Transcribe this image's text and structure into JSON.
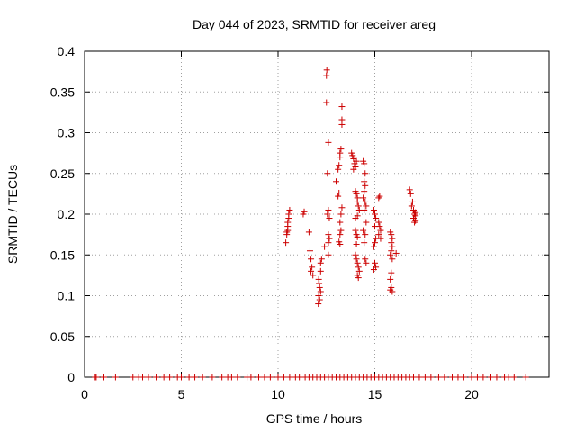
{
  "chart_data": {
    "type": "scatter",
    "title": "Day 044 of 2023, SRMTID for receiver areg",
    "xlabel": "GPS time / hours",
    "ylabel": "SRMTID / TECUs",
    "xlim": [
      0,
      24
    ],
    "ylim": [
      0,
      0.4
    ],
    "grid": true,
    "marker": "+",
    "color": "#cc0000",
    "xticks": [
      0,
      5,
      10,
      15,
      20
    ],
    "xtick_labels": [
      "0",
      "5",
      "10",
      "15",
      "20"
    ],
    "yticks": [
      0,
      0.05,
      0.1,
      0.15,
      0.2,
      0.25,
      0.3,
      0.35,
      0.4
    ],
    "ytick_labels": [
      "0",
      "0.05",
      "0.1",
      "0.15",
      "0.2",
      "0.25",
      "0.3",
      "0.35",
      "0.4"
    ],
    "series": [
      {
        "name": "SRMTID",
        "points": [
          [
            0.55,
            0
          ],
          [
            0.6,
            0
          ],
          [
            1.0,
            0
          ],
          [
            1.6,
            0
          ],
          [
            2.5,
            0
          ],
          [
            2.8,
            0
          ],
          [
            3.0,
            0
          ],
          [
            3.3,
            0
          ],
          [
            3.7,
            0
          ],
          [
            4.1,
            0
          ],
          [
            4.4,
            0
          ],
          [
            4.8,
            0
          ],
          [
            5.0,
            0
          ],
          [
            5.4,
            0
          ],
          [
            5.7,
            0
          ],
          [
            6.1,
            0
          ],
          [
            6.6,
            0
          ],
          [
            7.1,
            0
          ],
          [
            7.4,
            0
          ],
          [
            7.6,
            0
          ],
          [
            7.9,
            0
          ],
          [
            8.4,
            0
          ],
          [
            8.6,
            0
          ],
          [
            9.0,
            0
          ],
          [
            9.3,
            0
          ],
          [
            9.6,
            0
          ],
          [
            10.0,
            0
          ],
          [
            10.3,
            0
          ],
          [
            10.6,
            0
          ],
          [
            10.9,
            0
          ],
          [
            11.1,
            0
          ],
          [
            11.4,
            0
          ],
          [
            11.6,
            0
          ],
          [
            11.8,
            0
          ],
          [
            12.0,
            0
          ],
          [
            12.2,
            0
          ],
          [
            12.4,
            0
          ],
          [
            12.6,
            0
          ],
          [
            12.8,
            0
          ],
          [
            13.0,
            0
          ],
          [
            13.2,
            0
          ],
          [
            13.4,
            0
          ],
          [
            13.6,
            0
          ],
          [
            13.8,
            0
          ],
          [
            14.0,
            0
          ],
          [
            14.2,
            0
          ],
          [
            14.4,
            0
          ],
          [
            14.6,
            0
          ],
          [
            14.8,
            0
          ],
          [
            15.0,
            0
          ],
          [
            15.2,
            0
          ],
          [
            15.4,
            0
          ],
          [
            15.6,
            0
          ],
          [
            15.8,
            0
          ],
          [
            16.0,
            0
          ],
          [
            16.2,
            0
          ],
          [
            16.4,
            0
          ],
          [
            16.6,
            0
          ],
          [
            16.8,
            0
          ],
          [
            17.0,
            0
          ],
          [
            17.3,
            0
          ],
          [
            17.6,
            0
          ],
          [
            17.9,
            0
          ],
          [
            18.3,
            0
          ],
          [
            18.6,
            0
          ],
          [
            19.0,
            0
          ],
          [
            19.3,
            0
          ],
          [
            19.6,
            0
          ],
          [
            20.0,
            0
          ],
          [
            20.3,
            0
          ],
          [
            20.6,
            0
          ],
          [
            21.0,
            0
          ],
          [
            21.3,
            0
          ],
          [
            21.7,
            0
          ],
          [
            21.9,
            0
          ],
          [
            22.2,
            0
          ],
          [
            22.8,
            0
          ],
          [
            10.4,
            0.165
          ],
          [
            10.45,
            0.175
          ],
          [
            10.5,
            0.18
          ],
          [
            10.5,
            0.19
          ],
          [
            10.55,
            0.195
          ],
          [
            10.55,
            0.2
          ],
          [
            10.6,
            0.205
          ],
          [
            10.45,
            0.178
          ],
          [
            10.5,
            0.185
          ],
          [
            11.3,
            0.2
          ],
          [
            11.35,
            0.203
          ],
          [
            11.6,
            0.178
          ],
          [
            11.65,
            0.155
          ],
          [
            11.7,
            0.145
          ],
          [
            11.75,
            0.135
          ],
          [
            11.8,
            0.125
          ],
          [
            11.7,
            0.13
          ],
          [
            12.1,
            0.12
          ],
          [
            12.12,
            0.115
          ],
          [
            12.15,
            0.11
          ],
          [
            12.2,
            0.105
          ],
          [
            12.1,
            0.1
          ],
          [
            12.15,
            0.095
          ],
          [
            12.08,
            0.09
          ],
          [
            12.2,
            0.14
          ],
          [
            12.25,
            0.145
          ],
          [
            12.2,
            0.13
          ],
          [
            12.4,
            0.16
          ],
          [
            12.6,
            0.165
          ],
          [
            12.65,
            0.17
          ],
          [
            12.6,
            0.175
          ],
          [
            12.55,
            0.2
          ],
          [
            12.6,
            0.205
          ],
          [
            12.65,
            0.195
          ],
          [
            12.6,
            0.15
          ],
          [
            12.55,
            0.25
          ],
          [
            12.6,
            0.288
          ],
          [
            12.5,
            0.337
          ],
          [
            12.5,
            0.37
          ],
          [
            12.52,
            0.377
          ],
          [
            13.0,
            0.24
          ],
          [
            13.1,
            0.255
          ],
          [
            13.15,
            0.26
          ],
          [
            13.2,
            0.27
          ],
          [
            13.2,
            0.275
          ],
          [
            13.25,
            0.28
          ],
          [
            13.3,
            0.31
          ],
          [
            13.3,
            0.316
          ],
          [
            13.3,
            0.332
          ],
          [
            13.1,
            0.222
          ],
          [
            13.15,
            0.226
          ],
          [
            13.2,
            0.19
          ],
          [
            13.25,
            0.2
          ],
          [
            13.3,
            0.208
          ],
          [
            13.2,
            0.175
          ],
          [
            13.15,
            0.166
          ],
          [
            13.2,
            0.163
          ],
          [
            13.25,
            0.18
          ],
          [
            13.8,
            0.275
          ],
          [
            13.85,
            0.272
          ],
          [
            13.9,
            0.268
          ],
          [
            13.95,
            0.262
          ],
          [
            14.0,
            0.258
          ],
          [
            14.05,
            0.265
          ],
          [
            13.9,
            0.255
          ],
          [
            14.0,
            0.228
          ],
          [
            14.05,
            0.225
          ],
          [
            14.1,
            0.22
          ],
          [
            14.1,
            0.215
          ],
          [
            14.15,
            0.21
          ],
          [
            14.2,
            0.205
          ],
          [
            14.0,
            0.195
          ],
          [
            14.1,
            0.198
          ],
          [
            14.0,
            0.18
          ],
          [
            14.05,
            0.175
          ],
          [
            14.1,
            0.172
          ],
          [
            14.05,
            0.163
          ],
          [
            14.0,
            0.15
          ],
          [
            14.05,
            0.145
          ],
          [
            14.1,
            0.14
          ],
          [
            14.15,
            0.135
          ],
          [
            14.2,
            0.13
          ],
          [
            14.1,
            0.125
          ],
          [
            14.15,
            0.122
          ],
          [
            14.4,
            0.265
          ],
          [
            14.45,
            0.262
          ],
          [
            14.5,
            0.25
          ],
          [
            14.45,
            0.24
          ],
          [
            14.5,
            0.235
          ],
          [
            14.45,
            0.228
          ],
          [
            14.4,
            0.22
          ],
          [
            14.5,
            0.215
          ],
          [
            14.55,
            0.21
          ],
          [
            14.45,
            0.205
          ],
          [
            14.55,
            0.19
          ],
          [
            14.4,
            0.18
          ],
          [
            14.5,
            0.175
          ],
          [
            14.45,
            0.165
          ],
          [
            14.5,
            0.145
          ],
          [
            14.55,
            0.14
          ],
          [
            14.95,
            0.205
          ],
          [
            15.0,
            0.2
          ],
          [
            15.05,
            0.195
          ],
          [
            15.0,
            0.185
          ],
          [
            15.05,
            0.17
          ],
          [
            15.0,
            0.165
          ],
          [
            14.95,
            0.16
          ],
          [
            15.0,
            0.14
          ],
          [
            15.05,
            0.135
          ],
          [
            14.95,
            0.132
          ],
          [
            15.2,
            0.22
          ],
          [
            15.25,
            0.222
          ],
          [
            15.2,
            0.19
          ],
          [
            15.25,
            0.185
          ],
          [
            15.3,
            0.18
          ],
          [
            15.2,
            0.175
          ],
          [
            15.3,
            0.17
          ],
          [
            15.8,
            0.178
          ],
          [
            15.85,
            0.175
          ],
          [
            15.9,
            0.17
          ],
          [
            15.85,
            0.165
          ],
          [
            15.9,
            0.16
          ],
          [
            15.85,
            0.155
          ],
          [
            15.8,
            0.15
          ],
          [
            15.9,
            0.145
          ],
          [
            15.85,
            0.128
          ],
          [
            15.8,
            0.12
          ],
          [
            15.85,
            0.11
          ],
          [
            15.8,
            0.107
          ],
          [
            15.9,
            0.105
          ],
          [
            16.1,
            0.152
          ],
          [
            16.8,
            0.23
          ],
          [
            16.85,
            0.225
          ],
          [
            16.95,
            0.215
          ],
          [
            16.9,
            0.21
          ],
          [
            17.0,
            0.205
          ],
          [
            17.05,
            0.2
          ],
          [
            17.1,
            0.198
          ],
          [
            17.0,
            0.195
          ],
          [
            17.1,
            0.192
          ],
          [
            17.05,
            0.19
          ],
          [
            17.1,
            0.202
          ]
        ]
      }
    ]
  }
}
